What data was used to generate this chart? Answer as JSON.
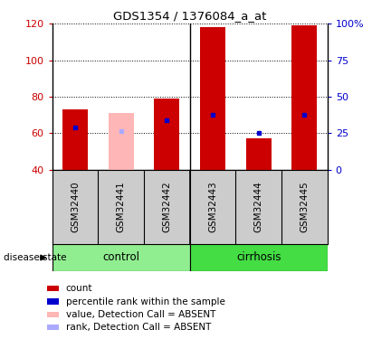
{
  "title": "GDS1354 / 1376084_a_at",
  "samples": [
    "GSM32440",
    "GSM32441",
    "GSM32442",
    "GSM32443",
    "GSM32444",
    "GSM32445"
  ],
  "bar_bottom": 40,
  "ylim_left": [
    40,
    120
  ],
  "ylim_right": [
    0,
    100
  ],
  "yticks_left": [
    40,
    60,
    80,
    100,
    120
  ],
  "yticks_right": [
    0,
    25,
    50,
    75,
    100
  ],
  "ytick_labels_left": [
    "40",
    "60",
    "80",
    "100",
    "120"
  ],
  "ytick_labels_right": [
    "0",
    "25",
    "50",
    "75",
    "100%"
  ],
  "red_bars": {
    "GSM32440": 73,
    "GSM32441": null,
    "GSM32442": 79,
    "GSM32443": 118,
    "GSM32444": 57,
    "GSM32445": 119
  },
  "pink_bars": {
    "GSM32441": 71
  },
  "blue_squares": {
    "GSM32440": 63,
    "GSM32442": 67,
    "GSM32443": 70,
    "GSM32444": 60,
    "GSM32445": 70
  },
  "light_blue_squares": {
    "GSM32441": 61
  },
  "red_bar_color": "#cc0000",
  "pink_bar_color": "#ffb6b6",
  "blue_square_color": "#0000cc",
  "light_blue_square_color": "#aaaaff",
  "bar_width": 0.55,
  "control_group_color": "#90ee90",
  "cirrhosis_group_color": "#44dd44",
  "sample_box_color": "#cccccc",
  "label_color_left": "#cc0000",
  "label_color_right": "#0000cc",
  "disease_state_label": "disease state",
  "legend_items": [
    {
      "label": "count",
      "color": "#cc0000"
    },
    {
      "label": "percentile rank within the sample",
      "color": "#0000cc"
    },
    {
      "label": "value, Detection Call = ABSENT",
      "color": "#ffb6b6"
    },
    {
      "label": "rank, Detection Call = ABSENT",
      "color": "#aaaaff"
    }
  ]
}
